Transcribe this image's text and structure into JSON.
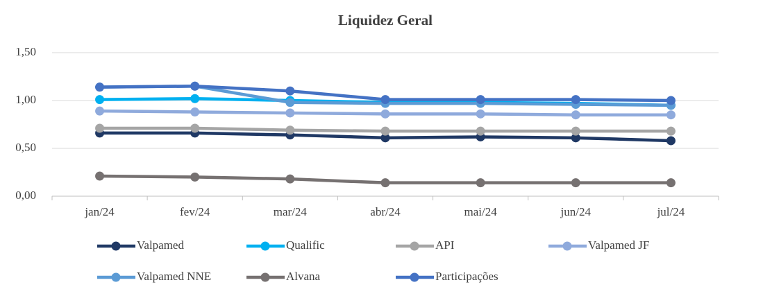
{
  "chart_data": {
    "type": "line",
    "title": "Liquidez Geral",
    "categories": [
      "jan/24",
      "fev/24",
      "mar/24",
      "abr/24",
      "mai/24",
      "jun/24",
      "jul/24"
    ],
    "ylim": [
      0,
      1.5
    ],
    "yticks": [
      {
        "value": 0,
        "label": "0,00"
      },
      {
        "value": 0.5,
        "label": "0,50"
      },
      {
        "value": 1,
        "label": "1,00"
      },
      {
        "value": 1.5,
        "label": "1,50"
      }
    ],
    "grid": true,
    "legend": "bottom",
    "series": [
      {
        "name": "Valpamed",
        "color": "#1f3864",
        "values": [
          0.66,
          0.66,
          0.64,
          0.61,
          0.62,
          0.61,
          0.58
        ]
      },
      {
        "name": "Qualific",
        "color": "#00b0f0",
        "values": [
          1.01,
          1.02,
          1.0,
          0.98,
          0.98,
          0.97,
          0.95
        ]
      },
      {
        "name": "API",
        "color": "#a5a5a5",
        "values": [
          0.71,
          0.71,
          0.69,
          0.68,
          0.68,
          0.68,
          0.68
        ]
      },
      {
        "name": "Valpamed JF",
        "color": "#8faadc",
        "values": [
          0.89,
          0.88,
          0.87,
          0.86,
          0.86,
          0.85,
          0.85
        ]
      },
      {
        "name": "Valpamed NNE",
        "color": "#5b9bd5",
        "values": [
          1.14,
          1.15,
          0.98,
          0.97,
          0.97,
          0.96,
          0.95
        ]
      },
      {
        "name": "Alvana",
        "color": "#767171",
        "values": [
          0.21,
          0.2,
          0.18,
          0.14,
          0.14,
          0.14,
          0.14
        ]
      },
      {
        "name": "Participações",
        "color": "#4472c4",
        "values": [
          1.14,
          1.15,
          1.1,
          1.01,
          1.01,
          1.01,
          1.0
        ]
      }
    ]
  }
}
